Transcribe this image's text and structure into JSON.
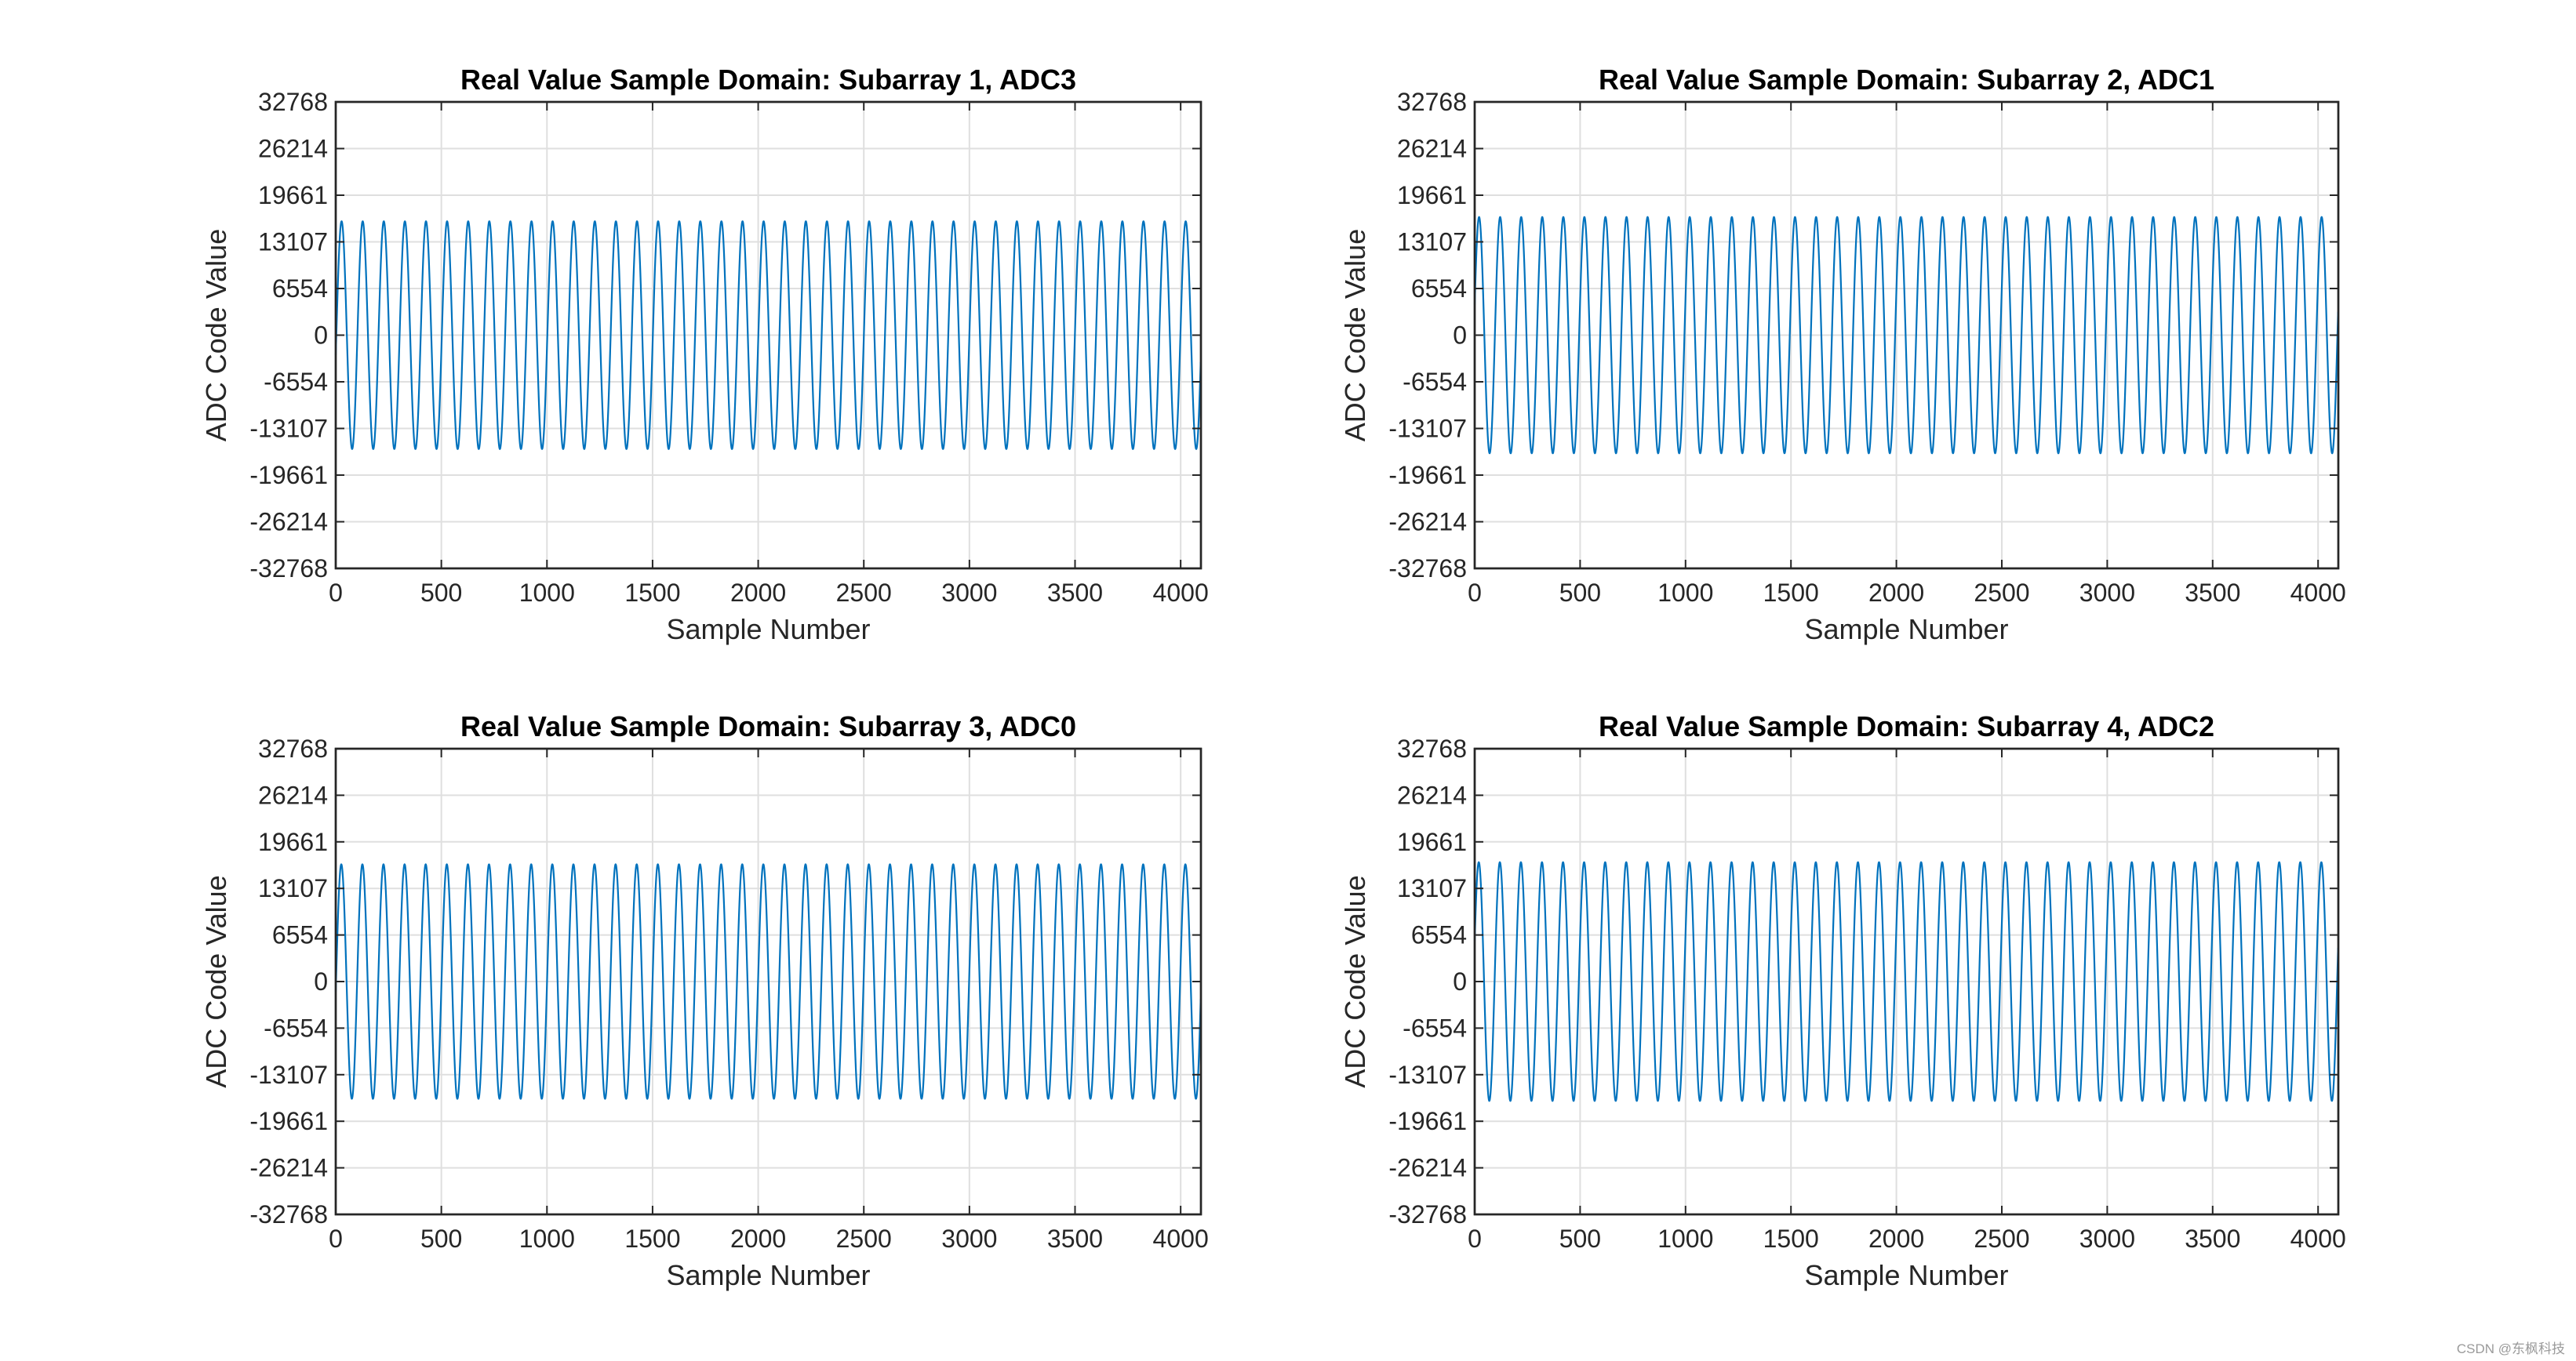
{
  "figure": {
    "watermark": "CSDN @东枫科技"
  },
  "chart_data": [
    {
      "type": "line",
      "title": "Real Value Sample Domain: Subarray 1, ADC3",
      "xlabel": "Sample Number",
      "ylabel": "ADC Code Value",
      "xlim": [
        0,
        4096
      ],
      "ylim": [
        -32768,
        32768
      ],
      "xticks": [
        0,
        500,
        1000,
        1500,
        2000,
        2500,
        3000,
        3500,
        4000
      ],
      "yticks": [
        32768,
        26214,
        19661,
        13107,
        6554,
        0,
        -6554,
        -13107,
        -19661,
        -26214,
        -32768
      ],
      "grid": true,
      "series": [
        {
          "name": "Subarray 1, ADC3",
          "color": "#0072BD",
          "signal": "sine",
          "amplitude": 16000,
          "offset": 0,
          "cycles": 41,
          "start_phase_deg": -10,
          "num_samples": 4096
        }
      ]
    },
    {
      "type": "line",
      "title": "Real Value Sample Domain: Subarray 2, ADC1",
      "xlabel": "Sample Number",
      "ylabel": "ADC Code Value",
      "xlim": [
        0,
        4096
      ],
      "ylim": [
        -32768,
        32768
      ],
      "xticks": [
        0,
        500,
        1000,
        1500,
        2000,
        2500,
        3000,
        3500,
        4000
      ],
      "yticks": [
        32768,
        26214,
        19661,
        13107,
        6554,
        0,
        -6554,
        -13107,
        -19661,
        -26214,
        -32768
      ],
      "grid": true,
      "series": [
        {
          "name": "Subarray 2, ADC1",
          "color": "#0072BD",
          "signal": "sine",
          "amplitude": 16600,
          "offset": 0,
          "cycles": 41,
          "start_phase_deg": 15,
          "num_samples": 4096
        }
      ]
    },
    {
      "type": "line",
      "title": "Real Value Sample Domain: Subarray 3, ADC0",
      "xlabel": "Sample Number",
      "ylabel": "ADC Code Value",
      "xlim": [
        0,
        4096
      ],
      "ylim": [
        -32768,
        32768
      ],
      "xticks": [
        0,
        500,
        1000,
        1500,
        2000,
        2500,
        3000,
        3500,
        4000
      ],
      "yticks": [
        32768,
        26214,
        19661,
        13107,
        6554,
        0,
        -6554,
        -13107,
        -19661,
        -26214,
        -32768
      ],
      "grid": true,
      "series": [
        {
          "name": "Subarray 3, ADC0",
          "color": "#0072BD",
          "signal": "sine",
          "amplitude": 16500,
          "offset": 0,
          "cycles": 41,
          "start_phase_deg": -5,
          "num_samples": 4096
        }
      ]
    },
    {
      "type": "line",
      "title": "Real Value Sample Domain: Subarray 4, ADC2",
      "xlabel": "Sample Number",
      "ylabel": "ADC Code Value",
      "xlim": [
        0,
        4096
      ],
      "ylim": [
        -32768,
        32768
      ],
      "xticks": [
        0,
        500,
        1000,
        1500,
        2000,
        2500,
        3000,
        3500,
        4000
      ],
      "yticks": [
        32768,
        26214,
        19661,
        13107,
        6554,
        0,
        -6554,
        -13107,
        -19661,
        -26214,
        -32768
      ],
      "grid": true,
      "series": [
        {
          "name": "Subarray 4, ADC2",
          "color": "#0072BD",
          "signal": "sine",
          "amplitude": 16800,
          "offset": 0,
          "cycles": 41,
          "start_phase_deg": 20,
          "num_samples": 4096
        }
      ]
    }
  ]
}
